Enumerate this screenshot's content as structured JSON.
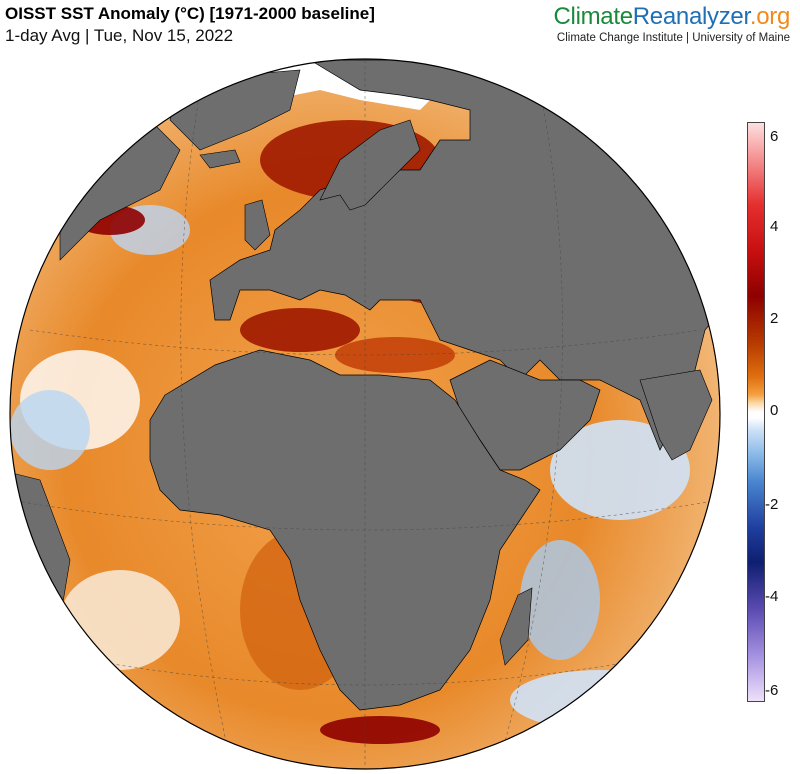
{
  "header": {
    "title": "OISST SST Anomaly (°C) [1971-2000 baseline]",
    "subtitle": "1-day Avg | Tue, Nov 15, 2022"
  },
  "brand": {
    "part1": "Climate",
    "part2": "Reanalyzer",
    "part3": ".org",
    "affiliation": "Climate Change Institute | University of Maine"
  },
  "colorbar": {
    "ticks": [
      "6",
      "4",
      "2",
      "0",
      "-2",
      "-4",
      "-6"
    ]
  },
  "colors": {
    "land": "#6e6e6e",
    "ice": "#ffffff",
    "warm": "#e8892a",
    "hot": "#a01a00",
    "cool": "#6ea4e0"
  }
}
